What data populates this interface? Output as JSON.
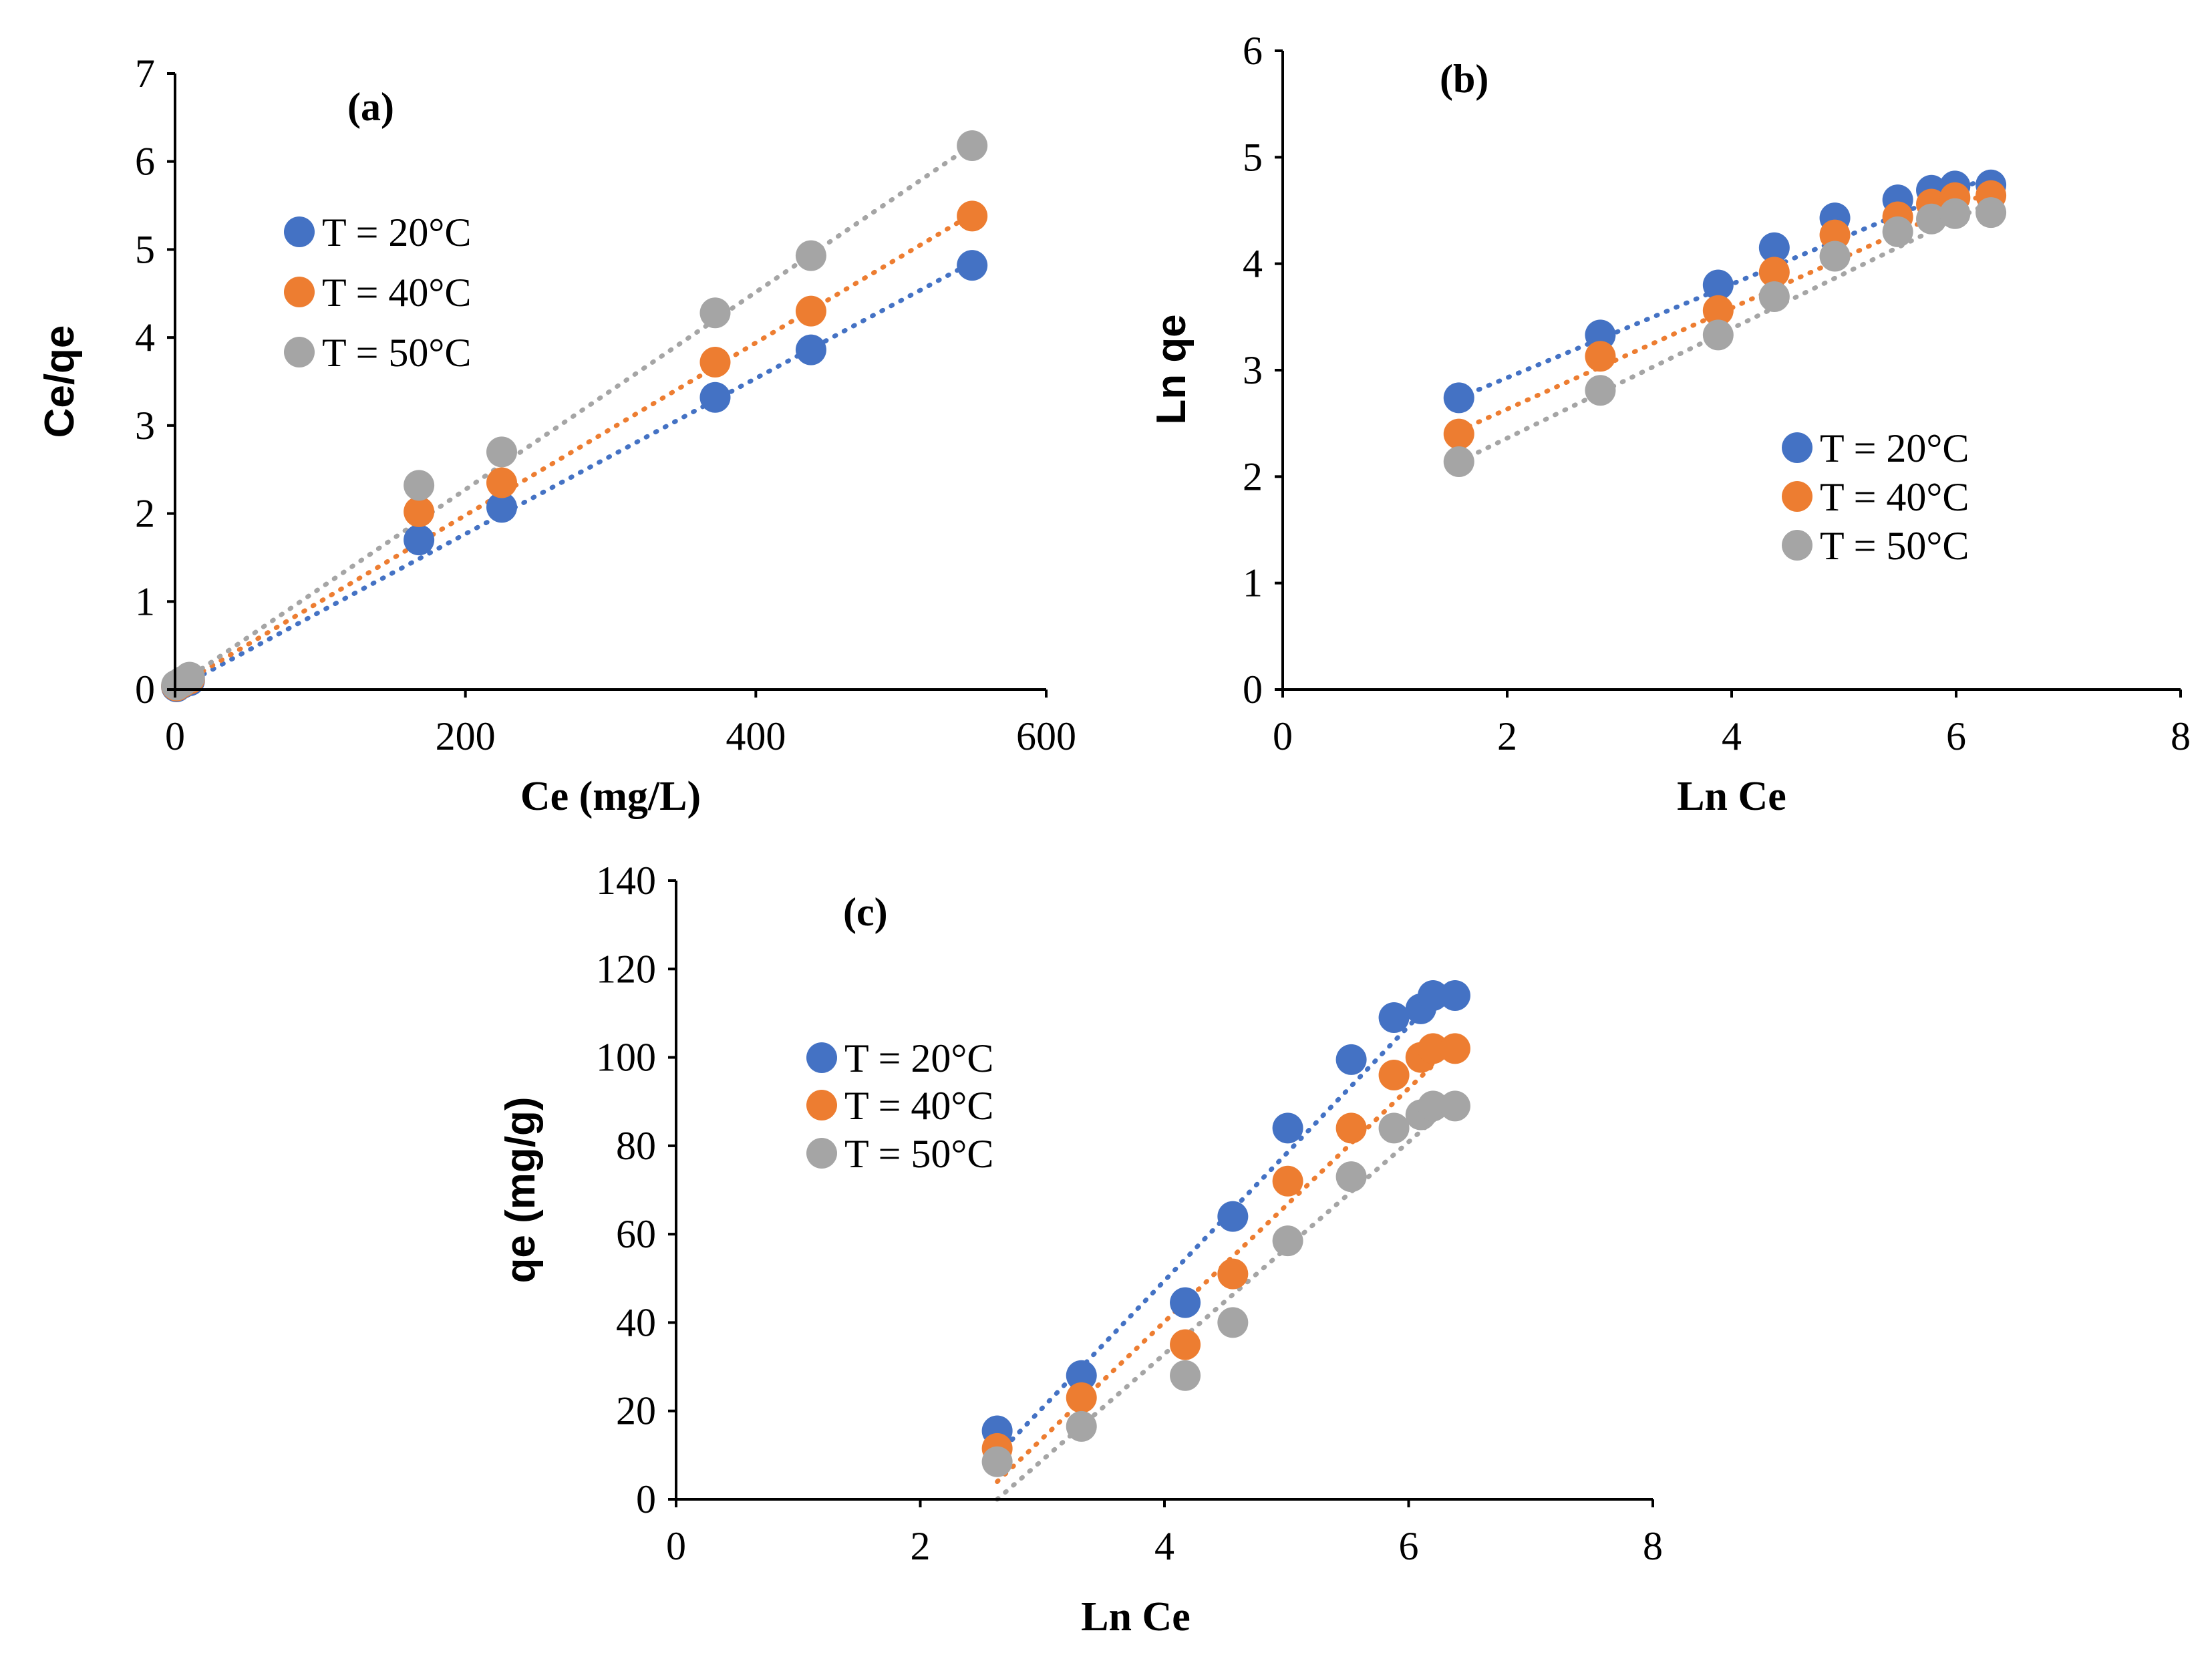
{
  "colors": {
    "series_20": "#4472C4",
    "series_40": "#ED7D31",
    "series_50": "#A5A5A5"
  },
  "chart_data": [
    {
      "type": "scatter",
      "panel_label": "(a)",
      "xlabel": "Ce (mg/L)",
      "ylabel": "Ce/qe",
      "xlim": [
        0,
        600
      ],
      "ylim": [
        0,
        7
      ],
      "x_ticks": [
        0,
        200,
        400,
        600
      ],
      "y_ticks": [
        0,
        1,
        2,
        3,
        4,
        5,
        6,
        7
      ],
      "legend": [
        "T = 20°C",
        "T = 40°C",
        "T = 50°C"
      ],
      "series": [
        {
          "name": "T = 20°C",
          "x": [
            1,
            5,
            10,
            168,
            225,
            372,
            438,
            549
          ],
          "y": [
            0.03,
            0.07,
            0.1,
            1.7,
            2.07,
            3.32,
            3.86,
            4.82
          ],
          "trend": [
            [
              0,
              0
            ],
            [
              552,
              4.88
            ]
          ]
        },
        {
          "name": "T = 40°C",
          "x": [
            1,
            5,
            10,
            168,
            225,
            372,
            438,
            549
          ],
          "y": [
            0.04,
            0.08,
            0.12,
            2.02,
            2.35,
            3.72,
            4.3,
            5.38
          ],
          "trend": [
            [
              0,
              0.02
            ],
            [
              552,
              5.43
            ]
          ]
        },
        {
          "name": "T = 50°C",
          "x": [
            1,
            5,
            10,
            168,
            225,
            372,
            438,
            549
          ],
          "y": [
            0.05,
            0.09,
            0.14,
            2.32,
            2.7,
            4.28,
            4.93,
            6.18
          ],
          "trend": [
            [
              0,
              0.03
            ],
            [
              552,
              6.22
            ]
          ]
        }
      ]
    },
    {
      "type": "scatter",
      "panel_label": "(b)",
      "xlabel": "Ln Ce",
      "ylabel": "Ln qe",
      "xlim": [
        0,
        8
      ],
      "ylim": [
        0,
        6
      ],
      "x_ticks": [
        0,
        2,
        4,
        6,
        8
      ],
      "y_ticks": [
        0,
        1,
        2,
        3,
        4,
        5,
        6
      ],
      "legend": [
        "T = 20°C",
        "T = 40°C",
        "T = 50°C"
      ],
      "series": [
        {
          "name": "T = 20°C",
          "x": [
            1.57,
            2.83,
            3.88,
            4.38,
            4.92,
            5.48,
            5.78,
            5.99,
            6.31
          ],
          "y": [
            2.74,
            3.33,
            3.8,
            4.15,
            4.43,
            4.6,
            4.69,
            4.73,
            4.74
          ],
          "trend": [
            [
              1.57,
              2.74
            ],
            [
              6.35,
              4.84
            ]
          ]
        },
        {
          "name": "T = 40°C",
          "x": [
            1.57,
            2.83,
            3.88,
            4.38,
            4.92,
            5.48,
            5.78,
            5.99,
            6.31
          ],
          "y": [
            2.4,
            3.13,
            3.56,
            3.92,
            4.27,
            4.44,
            4.56,
            4.62,
            4.64
          ],
          "trend": [
            [
              1.57,
              2.43
            ],
            [
              6.35,
              4.7
            ]
          ]
        },
        {
          "name": "T = 50°C",
          "x": [
            1.57,
            2.83,
            3.88,
            4.38,
            4.92,
            5.48,
            5.78,
            5.99,
            6.31
          ],
          "y": [
            2.14,
            2.81,
            3.33,
            3.69,
            4.07,
            4.3,
            4.42,
            4.47,
            4.48
          ],
          "trend": [
            [
              1.57,
              2.14
            ],
            [
              6.35,
              4.6
            ]
          ]
        }
      ]
    },
    {
      "type": "scatter",
      "panel_label": "(c)",
      "xlabel": "Ln Ce",
      "ylabel": "qe (mg/g)",
      "xlim": [
        0,
        8
      ],
      "ylim": [
        0,
        140
      ],
      "x_ticks": [
        0,
        2,
        4,
        6,
        8
      ],
      "y_ticks": [
        0,
        20,
        40,
        60,
        80,
        100,
        120,
        140
      ],
      "legend": [
        "T = 20°C",
        "T = 40°C",
        "T = 50°C"
      ],
      "series": [
        {
          "name": "T = 20°C",
          "x": [
            2.63,
            3.32,
            4.17,
            4.56,
            5.01,
            5.53,
            5.88,
            6.1,
            6.2,
            6.38
          ],
          "y": [
            15.5,
            28,
            44.5,
            64,
            84,
            99.5,
            109,
            111,
            114,
            114
          ],
          "trend": [
            [
              2.63,
              10
            ],
            [
              6.38,
              118
            ]
          ]
        },
        {
          "name": "T = 40°C",
          "x": [
            2.63,
            3.32,
            4.17,
            4.56,
            5.01,
            5.53,
            5.88,
            6.1,
            6.2,
            6.38
          ],
          "y": [
            11.5,
            23,
            35,
            51,
            72,
            84,
            96,
            100,
            102,
            102
          ],
          "trend": [
            [
              2.63,
              4
            ],
            [
              6.38,
              103
            ]
          ]
        },
        {
          "name": "T = 50°C",
          "x": [
            2.63,
            3.32,
            4.17,
            4.56,
            5.01,
            5.53,
            5.88,
            6.1,
            6.2,
            6.38
          ],
          "y": [
            8.5,
            16.5,
            28,
            40,
            58.5,
            73,
            84,
            87,
            89,
            89
          ],
          "trend": [
            [
              2.63,
              0
            ],
            [
              6.38,
              90
            ]
          ]
        }
      ]
    }
  ]
}
